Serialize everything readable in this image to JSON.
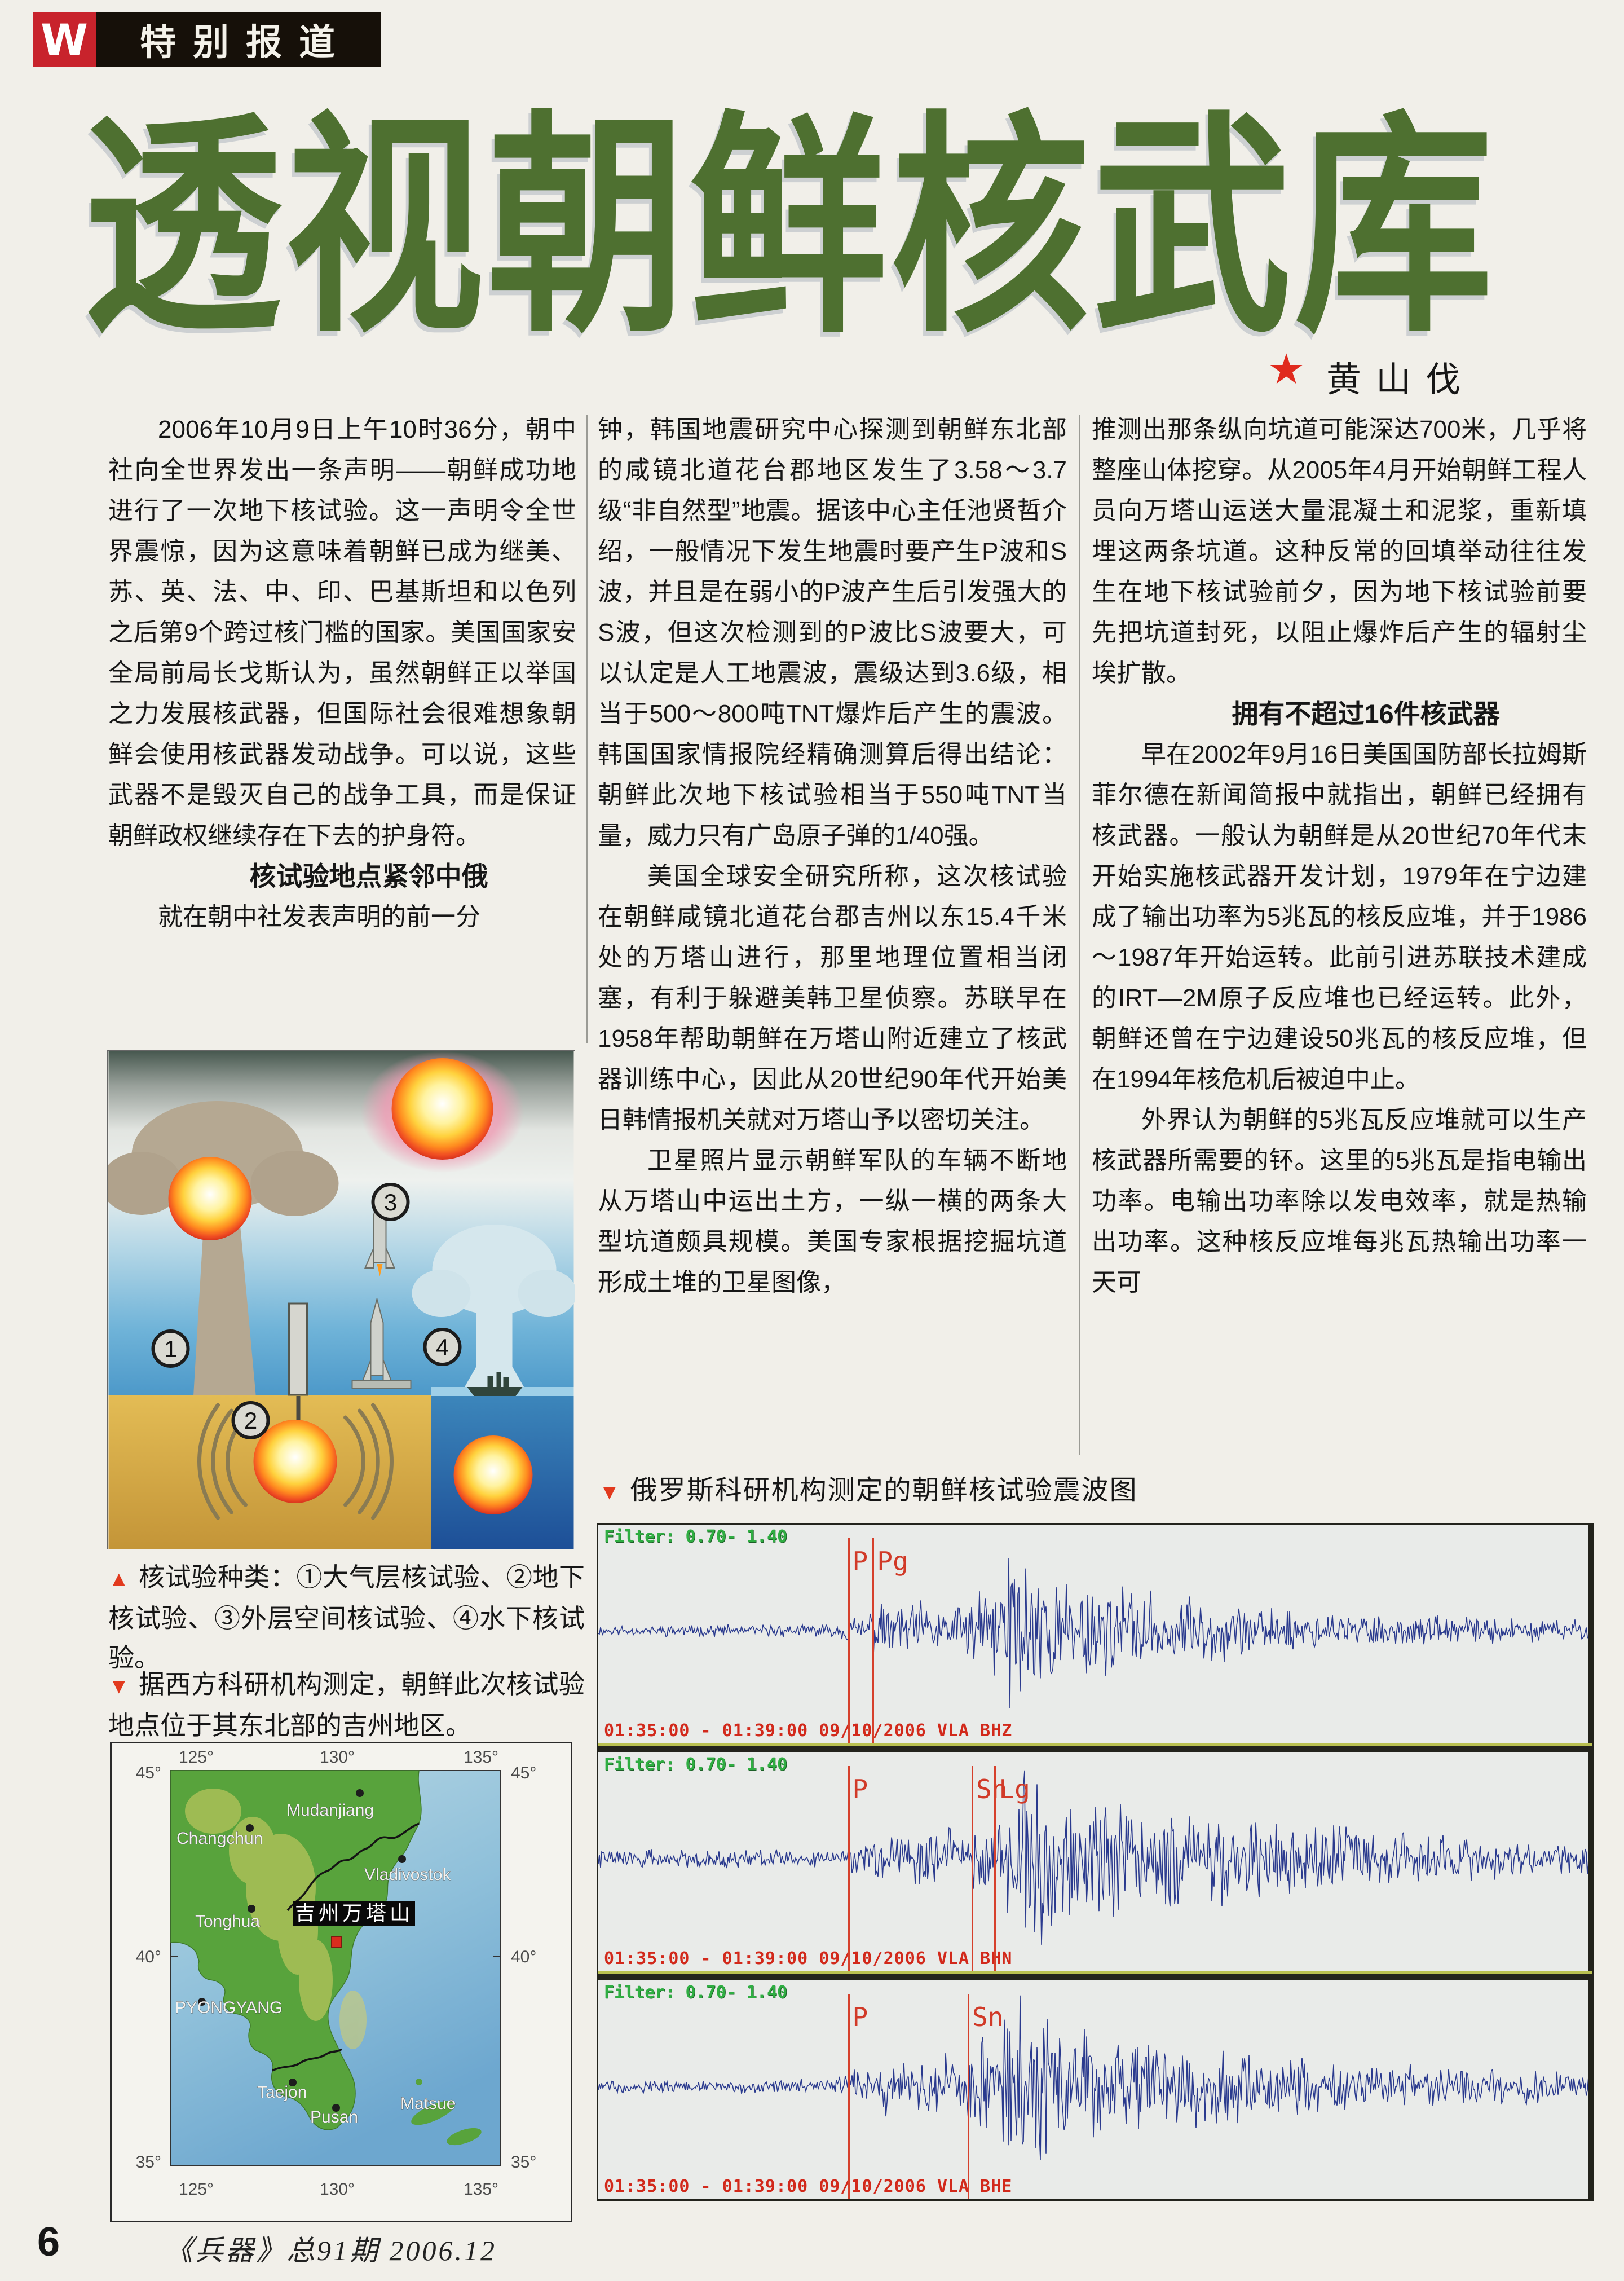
{
  "header": {
    "badge_w": "W",
    "badge_label": "特别报道"
  },
  "title": {
    "text": "透视朝鲜核武库",
    "color": "#4e7030",
    "star": "★",
    "author": "黄山伐"
  },
  "columns": {
    "left": {
      "p1": "2006年10月9日上午10时36分，朝中社向全世界发出一条声明——朝鲜成功地进行了一次地下核试验。这一声明令全世界震惊，因为这意味着朝鲜已成为继美、苏、英、法、中、印、巴基斯坦和以色列之后第9个跨过核门槛的国家。美国国家安全局前局长戈斯认为，虽然朝鲜正以举国之力发展核武器，但国际社会很难想象朝鲜会使用核武器发动战争。可以说，这些武器不是毁灭自己的战争工具，而是保证朝鲜政权继续存在下去的护身符。",
      "subtitle": "核试验地点紧邻中俄",
      "p2": "就在朝中社发表声明的前一分"
    },
    "middle": {
      "p1": "钟，韩国地震研究中心探测到朝鲜东北部的咸镜北道花台郡地区发生了3.58～3.7级“非自然型”地震。据该中心主任池贤哲介绍，一般情况下发生地震时要产生P波和S波，并且是在弱小的P波产生后引发强大的S波，但这次检测到的P波比S波要大，可以认定是人工地震波，震级达到3.6级，相当于500～800吨TNT爆炸后产生的震波。韩国国家情报院经精确测算后得出结论：朝鲜此次地下核试验相当于550吨TNT当量，威力只有广岛原子弹的1/40强。",
      "p2": "美国全球安全研究所称，这次核试验在朝鲜咸镜北道花台郡吉州以东15.4千米处的万塔山进行，那里地理位置相当闭塞，有利于躲避美韩卫星侦察。苏联早在1958年帮助朝鲜在万塔山附近建立了核武器训练中心，因此从20世纪90年代开始美日韩情报机关就对万塔山予以密切关注。",
      "p3": "卫星照片显示朝鲜军队的车辆不断地从万塔山中运出土方，一纵一横的两条大型坑道颇具规模。美国专家根据挖掘坑道形成土堆的卫星图像，"
    },
    "right": {
      "p1": "推测出那条纵向坑道可能深达700米，几乎将整座山体挖穿。从2005年4月开始朝鲜工程人员向万塔山运送大量混凝土和泥浆，重新填埋这两条坑道。这种反常的回填举动往往发生在地下核试验前夕，因为地下核试验前要先把坑道封死，以阻止爆炸后产生的辐射尘埃扩散。",
      "subtitle": "拥有不超过16件核武器",
      "p2": "早在2002年9月16日美国国防部长拉姆斯菲尔德在新闻简报中就指出，朝鲜已经拥有核武器。一般认为朝鲜是从20世纪70年代末开始实施核武器开发计划，1979年在宁边建成了输出功率为5兆瓦的核反应堆，并于1986～1987年开始运转。此前引进苏联技术建成的IRT—2M原子反应堆也已经运转。此外，朝鲜还曾在宁边建设50兆瓦的核反应堆，但在1994年核危机后被迫中止。",
      "p3": "外界认为朝鲜的5兆瓦反应堆就可以生产核武器所需要的钚。这里的5兆瓦是指电输出功率。电输出功率除以发电效率，就是热输出功率。这种核反应堆每兆瓦热输出功率一天可"
    }
  },
  "captions": {
    "types_marker": "▲",
    "types": "核试验种类：①大气层核试验、②地下核试验、③外层空间核试验、④水下核试验。",
    "map_marker": "▼",
    "map": "据西方科研机构测定，朝鲜此次核试验地点位于其东北部的吉州地区。",
    "seismo_marker": "▼",
    "seismo": "俄罗斯科研机构测定的朝鲜核试验震波图"
  },
  "illustration": {
    "badges": [
      "1",
      "2",
      "3",
      "4"
    ]
  },
  "map": {
    "lon_labels": [
      "125°",
      "130°",
      "135°"
    ],
    "lat_labels": [
      "45°",
      "40°",
      "35°"
    ],
    "cities": [
      {
        "name": "Changchun"
      },
      {
        "name": "Mudanjiang"
      },
      {
        "name": "Vladivostok"
      },
      {
        "name": "Tonghua"
      },
      {
        "name": "PYONGYANG"
      },
      {
        "name": "Taejon"
      },
      {
        "name": "Pusan"
      },
      {
        "name": "Matsue"
      }
    ],
    "site_label": "吉州万塔山"
  },
  "chart_data": {
    "type": "line",
    "title": "俄罗斯科研机构测定的朝鲜核试验震波图",
    "trace_color": "#2a3a8e",
    "marker_color": "#d6402c",
    "filter_color": "#2fae42",
    "stamp_color": "#d2291b",
    "panels": [
      {
        "station_channel": "VLA BHZ",
        "filter_label": "Filter:  0.70- 1.40",
        "footer": "01:35:00 - 01:39:00 09/10/2006 VLA BHZ",
        "time_window": [
          "01:35:00",
          "01:39:00"
        ],
        "date": "09/10/2006",
        "seed": 11,
        "phases": [
          {
            "label": "P",
            "x": 0.252
          },
          {
            "label": "Pg",
            "x": 0.277
          }
        ],
        "envelope": [
          [
            0,
            0.05
          ],
          [
            0.24,
            0.06
          ],
          [
            0.26,
            0.17
          ],
          [
            0.3,
            0.28
          ],
          [
            0.36,
            0.26
          ],
          [
            0.4,
            0.45
          ],
          [
            0.415,
            1.0
          ],
          [
            0.435,
            0.85
          ],
          [
            0.46,
            0.5
          ],
          [
            0.52,
            0.42
          ],
          [
            0.58,
            0.33
          ],
          [
            0.65,
            0.26
          ],
          [
            0.75,
            0.18
          ],
          [
            0.85,
            0.13
          ],
          [
            1,
            0.1
          ]
        ]
      },
      {
        "station_channel": "VLA BHN",
        "filter_label": "Filter:  0.70- 1.40",
        "footer": "01:35:00 - 01:39:00 09/10/2006 VLA BHN",
        "time_window": [
          "01:35:00",
          "01:39:00"
        ],
        "date": "09/10/2006",
        "seed": 22,
        "phases": [
          {
            "label": "P",
            "x": 0.252
          },
          {
            "label": "Sn",
            "x": 0.377
          },
          {
            "label": "Lg",
            "x": 0.4
          }
        ],
        "envelope": [
          [
            0,
            0.09
          ],
          [
            0.24,
            0.09
          ],
          [
            0.26,
            0.2
          ],
          [
            0.32,
            0.24
          ],
          [
            0.38,
            0.3
          ],
          [
            0.41,
            0.5
          ],
          [
            0.44,
            1.0
          ],
          [
            0.47,
            0.8
          ],
          [
            0.52,
            0.6
          ],
          [
            0.6,
            0.48
          ],
          [
            0.68,
            0.4
          ],
          [
            0.78,
            0.3
          ],
          [
            0.88,
            0.2
          ],
          [
            1,
            0.15
          ]
        ]
      },
      {
        "station_channel": "VLA BHE",
        "filter_label": "Filter:  0.70- 1.40",
        "footer": "01:35:00 - 01:39:00 09/10/2006 VLA BHE",
        "time_window": [
          "01:35:00",
          "01:39:00"
        ],
        "date": "09/10/2006",
        "seed": 33,
        "phases": [
          {
            "label": "P",
            "x": 0.252
          },
          {
            "label": "Sn",
            "x": 0.373
          }
        ],
        "envelope": [
          [
            0,
            0.06
          ],
          [
            0.24,
            0.07
          ],
          [
            0.27,
            0.25
          ],
          [
            0.33,
            0.28
          ],
          [
            0.37,
            0.35
          ],
          [
            0.4,
            0.7
          ],
          [
            0.43,
            1.0
          ],
          [
            0.46,
            0.7
          ],
          [
            0.52,
            0.45
          ],
          [
            0.6,
            0.36
          ],
          [
            0.7,
            0.28
          ],
          [
            0.82,
            0.2
          ],
          [
            1,
            0.14
          ]
        ]
      }
    ]
  },
  "footer": {
    "page_number": "6",
    "issue": "《兵器》总91期  2006.12"
  }
}
